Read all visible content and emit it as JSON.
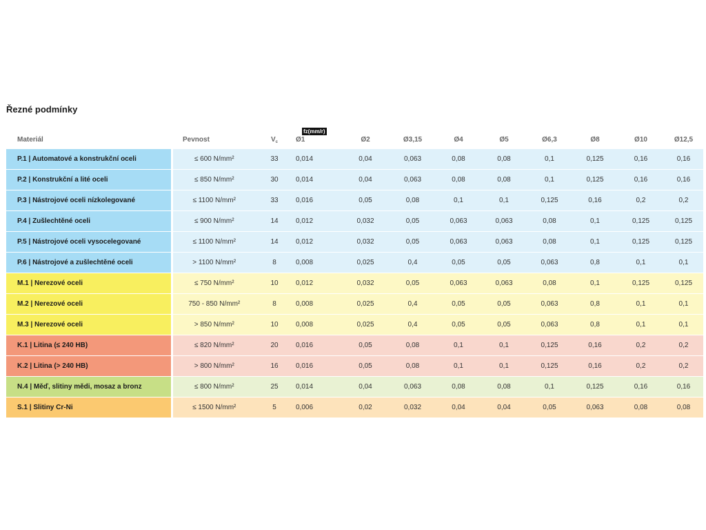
{
  "title": "Řezné podmínky",
  "fz_label": "fz(mm/r)",
  "headers": {
    "material": "Materiál",
    "pevnost": "Pevnost",
    "vc": "V",
    "vc_sub": "c",
    "diameters": [
      "Ø1",
      "Ø2",
      "Ø3,15",
      "Ø4",
      "Ø5",
      "Ø6,3",
      "Ø8",
      "Ø10",
      "Ø12,5"
    ]
  },
  "colors": {
    "P_dark": "#a6dcf5",
    "P_light": "#dff1fa",
    "M_dark": "#f8ef5f",
    "M_light": "#fdf8c5",
    "K_dark": "#f3987a",
    "K_light": "#f9d7cd",
    "N_dark": "#c7df86",
    "N_light": "#e9f2d3",
    "S_dark": "#fbc970",
    "S_light": "#fde3bb"
  },
  "rows": [
    {
      "material": "P.1 | Automatové a konstrukční oceli",
      "pevnost": "≤ 600 N/mm²",
      "vc": "33",
      "values": [
        "0,014",
        "0,04",
        "0,063",
        "0,08",
        "0,08",
        "0,1",
        "0,125",
        "0,16",
        "0,16"
      ],
      "group": "P"
    },
    {
      "material": "P.2 | Konstrukční a lité oceli",
      "pevnost": "≤ 850 N/mm²",
      "vc": "30",
      "values": [
        "0,014",
        "0,04",
        "0,063",
        "0,08",
        "0,08",
        "0,1",
        "0,125",
        "0,16",
        "0,16"
      ],
      "group": "P"
    },
    {
      "material": "P.3 | Nástrojové oceli nízkolegované",
      "pevnost": "≤ 1100 N/mm²",
      "vc": "33",
      "values": [
        "0,016",
        "0,05",
        "0,08",
        "0,1",
        "0,1",
        "0,125",
        "0,16",
        "0,2",
        "0,2"
      ],
      "group": "P"
    },
    {
      "material": "P.4 | Zušlechtěné oceli",
      "pevnost": "≤ 900 N/mm²",
      "vc": "14",
      "values": [
        "0,012",
        "0,032",
        "0,05",
        "0,063",
        "0,063",
        "0,08",
        "0,1",
        "0,125",
        "0,125"
      ],
      "group": "P"
    },
    {
      "material": "P.5 | Nástrojové oceli vysocelegované",
      "pevnost": "≤ 1100 N/mm²",
      "vc": "14",
      "values": [
        "0,012",
        "0,032",
        "0,05",
        "0,063",
        "0,063",
        "0,08",
        "0,1",
        "0,125",
        "0,125"
      ],
      "group": "P"
    },
    {
      "material": "P.6 | Nástrojové a zušlechtěné oceli",
      "pevnost": "> 1100 N/mm²",
      "vc": "8",
      "values": [
        "0,008",
        "0,025",
        "0,4",
        "0,05",
        "0,05",
        "0,063",
        "0,8",
        "0,1",
        "0,1"
      ],
      "group": "P"
    },
    {
      "material": "M.1 | Nerezové oceli",
      "pevnost": "≤ 750 N/mm²",
      "vc": "10",
      "values": [
        "0,012",
        "0,032",
        "0,05",
        "0,063",
        "0,063",
        "0,08",
        "0,1",
        "0,125",
        "0,125"
      ],
      "group": "M"
    },
    {
      "material": "M.2 | Nerezové oceli",
      "pevnost": "750 - 850 N/mm²",
      "vc": "8",
      "values": [
        "0,008",
        "0,025",
        "0,4",
        "0,05",
        "0,05",
        "0,063",
        "0,8",
        "0,1",
        "0,1"
      ],
      "group": "M"
    },
    {
      "material": "M.3 | Nerezové oceli",
      "pevnost": "> 850 N/mm²",
      "vc": "10",
      "values": [
        "0,008",
        "0,025",
        "0,4",
        "0,05",
        "0,05",
        "0,063",
        "0,8",
        "0,1",
        "0,1"
      ],
      "group": "M"
    },
    {
      "material": "K.1 | Litina (≤ 240 HB)",
      "pevnost": "≤ 820 N/mm²",
      "vc": "20",
      "values": [
        "0,016",
        "0,05",
        "0,08",
        "0,1",
        "0,1",
        "0,125",
        "0,16",
        "0,2",
        "0,2"
      ],
      "group": "K"
    },
    {
      "material": "K.2 | Litina (> 240 HB)",
      "pevnost": "> 800 N/mm²",
      "vc": "16",
      "values": [
        "0,016",
        "0,05",
        "0,08",
        "0,1",
        "0,1",
        "0,125",
        "0,16",
        "0,2",
        "0,2"
      ],
      "group": "K"
    },
    {
      "material": "N.4 | Měď, slitiny mědi, mosaz a bronz",
      "pevnost": "≤ 800 N/mm²",
      "vc": "25",
      "values": [
        "0,014",
        "0,04",
        "0,063",
        "0,08",
        "0,08",
        "0,1",
        "0,125",
        "0,16",
        "0,16"
      ],
      "group": "N"
    },
    {
      "material": "S.1 | Slitiny Cr-Ni",
      "pevnost": "≤ 1500 N/mm²",
      "vc": "5",
      "values": [
        "0,006",
        "0,02",
        "0,032",
        "0,04",
        "0,04",
        "0,05",
        "0,063",
        "0,08",
        "0,08"
      ],
      "group": "S"
    }
  ]
}
